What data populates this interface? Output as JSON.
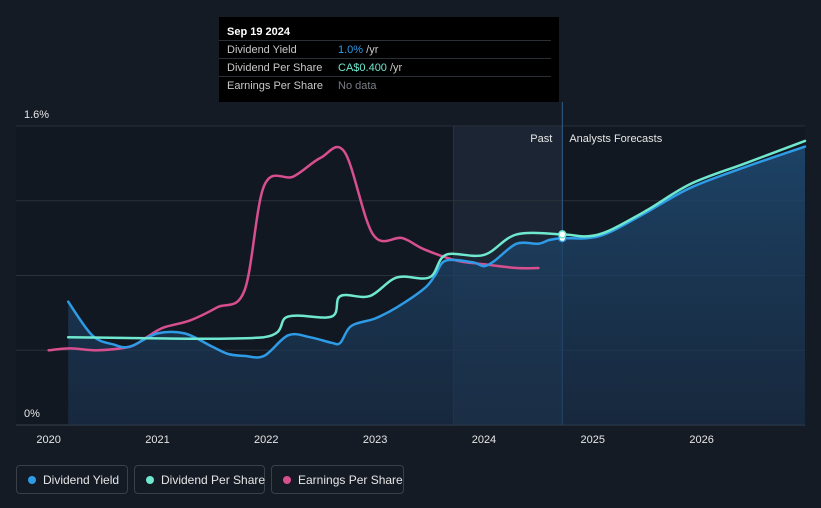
{
  "tooltip": {
    "date": "Sep 19 2024",
    "rows": [
      {
        "label": "Dividend Yield",
        "value": "1.0%",
        "unit": " /yr",
        "color": "#2e9be6"
      },
      {
        "label": "Dividend Per Share",
        "value": "CA$0.400",
        "unit": " /yr",
        "color": "#6fe8cf"
      },
      {
        "label": "Earnings Per Share",
        "value": "No data",
        "unit": "",
        "color": "#7a7f87"
      }
    ]
  },
  "legend": [
    {
      "label": "Dividend Yield",
      "color": "#2e9be6"
    },
    {
      "label": "Dividend Per Share",
      "color": "#6fe8cf"
    },
    {
      "label": "Earnings Per Share",
      "color": "#d84f8f"
    }
  ],
  "chart_data": {
    "type": "line",
    "y_tick_labels": [
      "1.6%",
      "0%"
    ],
    "ylim": [
      0,
      1.6
    ],
    "x_tick_labels": [
      "2020",
      "2021",
      "2022",
      "2023",
      "2024",
      "2025",
      "2026"
    ],
    "xlim": [
      2019.7,
      2026.95
    ],
    "region_labels": {
      "past": "Past",
      "forecast": "Analysts Forecasts"
    },
    "past_shade_start": 2023.72,
    "forecast_start": 2024.72,
    "grid": true,
    "series": [
      {
        "name": "Dividend Yield",
        "color": "#2e9be6",
        "area": true,
        "points": [
          [
            2020.18,
            0.66
          ],
          [
            2020.4,
            0.48
          ],
          [
            2020.6,
            0.43
          ],
          [
            2020.75,
            0.42
          ],
          [
            2021.0,
            0.49
          ],
          [
            2021.25,
            0.49
          ],
          [
            2021.5,
            0.42
          ],
          [
            2021.65,
            0.38
          ],
          [
            2021.8,
            0.37
          ],
          [
            2021.98,
            0.37
          ],
          [
            2022.2,
            0.48
          ],
          [
            2022.4,
            0.47
          ],
          [
            2022.6,
            0.44
          ],
          [
            2022.68,
            0.44
          ],
          [
            2022.78,
            0.53
          ],
          [
            2023.0,
            0.57
          ],
          [
            2023.2,
            0.63
          ],
          [
            2023.45,
            0.73
          ],
          [
            2023.55,
            0.8
          ],
          [
            2023.65,
            0.88
          ],
          [
            2023.9,
            0.87
          ],
          [
            2024.0,
            0.85
          ],
          [
            2024.1,
            0.88
          ],
          [
            2024.3,
            0.97
          ],
          [
            2024.5,
            0.97
          ],
          [
            2024.6,
            0.99
          ],
          [
            2024.72,
            1.0
          ],
          [
            2024.95,
            1.0
          ],
          [
            2025.15,
            1.03
          ],
          [
            2025.5,
            1.14
          ],
          [
            2025.9,
            1.27
          ],
          [
            2026.4,
            1.38
          ],
          [
            2026.95,
            1.49
          ]
        ]
      },
      {
        "name": "Dividend Per Share",
        "color": "#6fe8cf",
        "points": [
          [
            2020.18,
            0.47
          ],
          [
            2021.98,
            0.47
          ],
          [
            2022.2,
            0.58
          ],
          [
            2022.6,
            0.58
          ],
          [
            2022.68,
            0.69
          ],
          [
            2022.95,
            0.69
          ],
          [
            2023.2,
            0.79
          ],
          [
            2023.5,
            0.79
          ],
          [
            2023.65,
            0.91
          ],
          [
            2024.0,
            0.91
          ],
          [
            2024.3,
            1.02
          ],
          [
            2024.72,
            1.02
          ],
          [
            2024.95,
            1.01
          ],
          [
            2025.15,
            1.04
          ],
          [
            2025.5,
            1.15
          ],
          [
            2025.9,
            1.29
          ],
          [
            2026.4,
            1.4
          ],
          [
            2026.95,
            1.52
          ]
        ]
      },
      {
        "name": "Earnings Per Share",
        "color": "#d84f8f",
        "points": [
          [
            2020.0,
            0.4
          ],
          [
            2020.2,
            0.41
          ],
          [
            2020.45,
            0.4
          ],
          [
            2020.75,
            0.42
          ],
          [
            2020.9,
            0.47
          ],
          [
            2021.05,
            0.52
          ],
          [
            2021.3,
            0.56
          ],
          [
            2021.55,
            0.63
          ],
          [
            2021.8,
            0.72
          ],
          [
            2021.98,
            1.28
          ],
          [
            2022.25,
            1.33
          ],
          [
            2022.5,
            1.43
          ],
          [
            2022.72,
            1.46
          ],
          [
            2022.98,
            1.02
          ],
          [
            2023.25,
            1.0
          ],
          [
            2023.45,
            0.94
          ],
          [
            2023.75,
            0.88
          ],
          [
            2024.0,
            0.86
          ],
          [
            2024.3,
            0.84
          ],
          [
            2024.5,
            0.84
          ]
        ]
      }
    ],
    "markers": [
      {
        "x": 2024.72,
        "y": 1.0,
        "color": "#2e9be6"
      },
      {
        "x": 2024.72,
        "y": 1.02,
        "color": "#6fe8cf"
      }
    ]
  }
}
